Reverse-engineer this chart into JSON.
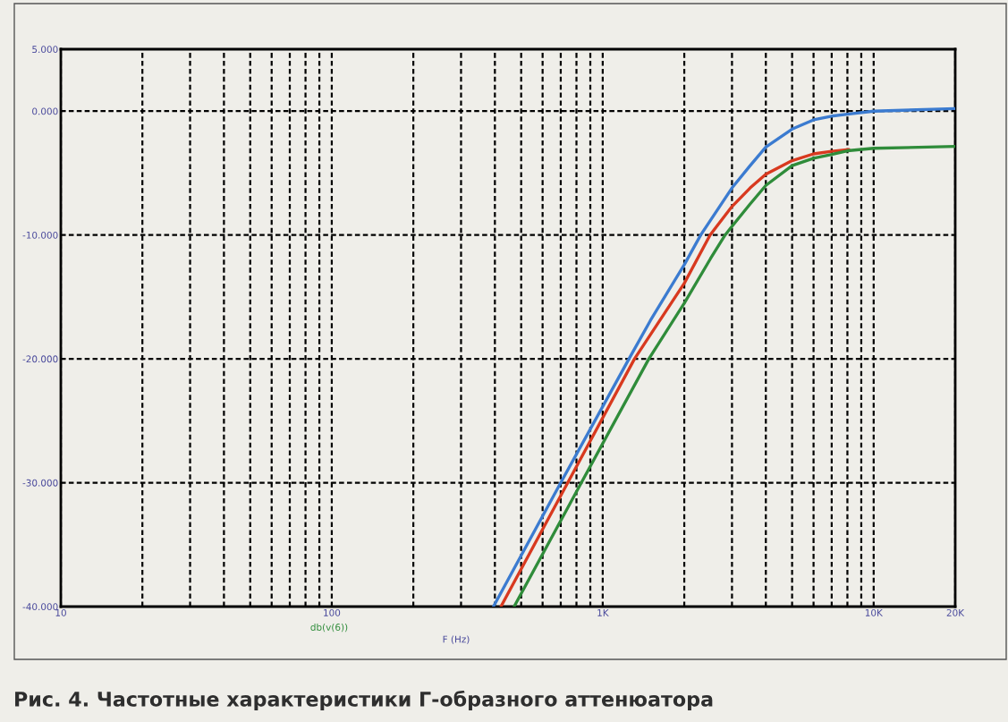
{
  "chart_data": {
    "type": "line",
    "title": "Рис. 4. Частотные характеристики Г-образного аттенюатора",
    "xlabel": "F (Hz)",
    "log": "x",
    "xlim": [
      10,
      20000
    ],
    "ylim": [
      -40,
      5
    ],
    "xticks": [
      10,
      {
        "value": 20,
        "label": null
      },
      {
        "value": 30,
        "label": null
      },
      {
        "value": 40,
        "label": null
      },
      {
        "value": 50,
        "label": null
      },
      {
        "value": 60,
        "label": null
      },
      {
        "value": 70,
        "label": null
      },
      {
        "value": 80,
        "label": null
      },
      {
        "value": 90,
        "label": null
      },
      100,
      {
        "value": 200,
        "label": null
      },
      {
        "value": 300,
        "label": null
      },
      {
        "value": 400,
        "label": null
      },
      {
        "value": 500,
        "label": null
      },
      {
        "value": 600,
        "label": null
      },
      {
        "value": 700,
        "label": null
      },
      {
        "value": 800,
        "label": null
      },
      {
        "value": 900,
        "label": null
      },
      {
        "value": 1000,
        "label": "1K"
      },
      {
        "value": 2000,
        "label": null
      },
      {
        "value": 3000,
        "label": null
      },
      {
        "value": 4000,
        "label": null
      },
      {
        "value": 5000,
        "label": null
      },
      {
        "value": 6000,
        "label": null
      },
      {
        "value": 7000,
        "label": null
      },
      {
        "value": 8000,
        "label": null
      },
      {
        "value": 9000,
        "label": null
      },
      {
        "value": 10000,
        "label": "10K"
      },
      {
        "value": 20000,
        "label": "20K"
      }
    ],
    "yticks": [
      {
        "value": 5,
        "label": "5.000"
      },
      {
        "value": 0,
        "label": "0.000"
      },
      {
        "value": -10,
        "label": "-10.000"
      },
      {
        "value": -20,
        "label": "-20.000"
      },
      {
        "value": -30,
        "label": "-30.000"
      },
      {
        "value": -40,
        "label": "-40.000"
      }
    ],
    "grid": true,
    "legend": "bottom",
    "series": [
      {
        "color": "#3b7bd0",
        "x": [
          395,
          700,
          1250,
          1500,
          2000,
          2300,
          2500,
          3000,
          3500,
          4000,
          5000,
          6000,
          7000,
          8000,
          10000,
          20000
        ],
        "values": [
          -40,
          -30,
          -20,
          -16.9,
          -12.4,
          -10,
          -8.8,
          -6.2,
          -4.4,
          -2.9,
          -1.45,
          -0.7,
          -0.4,
          -0.25,
          0,
          0.2
        ]
      },
      {
        "color": "#d8391f",
        "x": [
          421,
          743,
          1310,
          2000,
          2490,
          3000,
          3500,
          4000,
          5000,
          6000,
          7000,
          8100
        ],
        "values": [
          -40,
          -30,
          -20,
          -13.9,
          -10,
          -7.7,
          -6.2,
          -5.1,
          -4.0,
          -3.45,
          -3.25,
          -3.1
        ]
      },
      {
        "name": "db(v(6))",
        "color": "#2f8c3a",
        "x": [
          471,
          834,
          1480,
          2000,
          2500,
          2830,
          3000,
          3500,
          4000,
          5000,
          6000,
          7000,
          8000,
          10000,
          20000
        ],
        "values": [
          -40,
          -30,
          -20,
          -15.5,
          -11.9,
          -10,
          -9.3,
          -7.5,
          -6.0,
          -4.4,
          -3.8,
          -3.5,
          -3.2,
          -3.0,
          -2.85
        ]
      }
    ]
  }
}
